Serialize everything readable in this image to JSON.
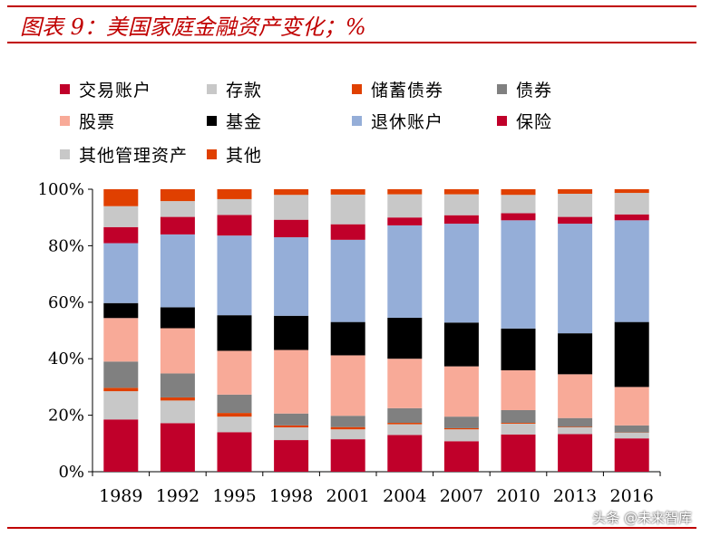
{
  "title": "图表 9：美国家庭金融资产变化；%",
  "watermark": "头条 @未来智库",
  "colors": {
    "accent": "#c00000"
  },
  "chart_data": {
    "type": "bar",
    "stacked": true,
    "categories": [
      "1989",
      "1992",
      "1995",
      "1998",
      "2001",
      "2004",
      "2007",
      "2010",
      "2013",
      "2016"
    ],
    "ylim": [
      0,
      100
    ],
    "yticks": [
      "0%",
      "20%",
      "40%",
      "60%",
      "80%",
      "100%"
    ],
    "grid": false,
    "legend_position": "top",
    "series": [
      {
        "name": "交易账户",
        "color": "#c0002a",
        "values": [
          18.5,
          17.2,
          14.0,
          11.2,
          11.5,
          13.0,
          10.8,
          13.2,
          13.3,
          11.8
        ]
      },
      {
        "name": "存款",
        "color": "#c8c8c8",
        "values": [
          10.0,
          8.0,
          5.5,
          4.5,
          3.5,
          3.8,
          4.2,
          3.8,
          2.4,
          2.0
        ]
      },
      {
        "name": "储蓄债券",
        "color": "#e04000",
        "values": [
          1.2,
          1.1,
          1.3,
          0.7,
          0.8,
          0.5,
          0.4,
          0.3,
          0.2,
          0.1
        ]
      },
      {
        "name": "债券",
        "color": "#808080",
        "values": [
          9.3,
          8.5,
          6.5,
          4.2,
          4.0,
          5.2,
          4.1,
          4.5,
          3.1,
          2.5
        ]
      },
      {
        "name": "股票",
        "color": "#f8aa98",
        "values": [
          15.4,
          16.0,
          15.5,
          22.5,
          21.4,
          17.5,
          17.8,
          14.1,
          15.5,
          13.6
        ]
      },
      {
        "name": "基金",
        "color": "#000000",
        "values": [
          5.3,
          7.4,
          12.6,
          12.1,
          11.8,
          14.5,
          15.5,
          14.8,
          14.5,
          23.0
        ]
      },
      {
        "name": "退休账户",
        "color": "#95aed8",
        "values": [
          21.2,
          25.8,
          28.2,
          27.8,
          29.1,
          32.7,
          35.0,
          38.3,
          38.8,
          36.0
        ]
      },
      {
        "name": "保险",
        "color": "#c0002a",
        "values": [
          5.7,
          6.2,
          7.3,
          6.2,
          5.5,
          2.8,
          3.0,
          2.5,
          2.4,
          2.1
        ]
      },
      {
        "name": "其他管理资产",
        "color": "#c8c8c8",
        "values": [
          7.4,
          5.6,
          5.6,
          8.8,
          10.5,
          8.2,
          7.4,
          6.5,
          8.2,
          7.6
        ]
      },
      {
        "name": "其他",
        "color": "#e04000",
        "values": [
          6.0,
          4.2,
          3.5,
          2.0,
          1.9,
          1.8,
          1.8,
          2.0,
          1.6,
          1.3
        ]
      }
    ]
  }
}
